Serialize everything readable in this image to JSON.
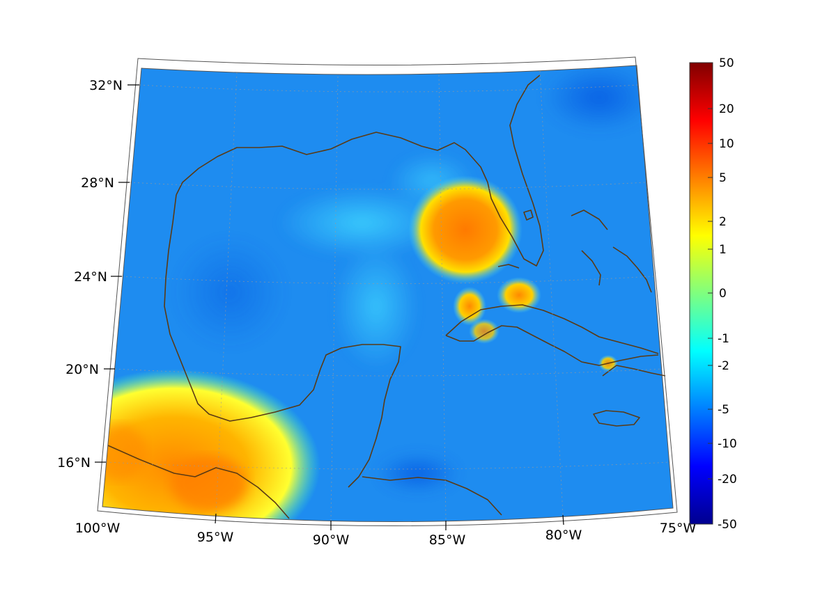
{
  "map": {
    "region": "Gulf of Mexico and Caribbean",
    "projection": "conic",
    "lat_ticks": [
      "32°N",
      "28°N",
      "24°N",
      "20°N",
      "16°N"
    ],
    "lon_ticks": [
      "100°W",
      "95°W",
      "90°W",
      "85°W",
      "80°W",
      "75°W"
    ],
    "coastline_color": "#5a3a14",
    "background_field_color": "#1e8cf0"
  },
  "colorbar": {
    "ticks": [
      "50",
      "20",
      "10",
      "5",
      "2",
      "1",
      "0",
      "-1",
      "-2",
      "-5",
      "-10",
      "-20",
      "-50"
    ],
    "colormap": "jet",
    "top_color": "#800000",
    "bottom_color": "#00008f"
  }
}
